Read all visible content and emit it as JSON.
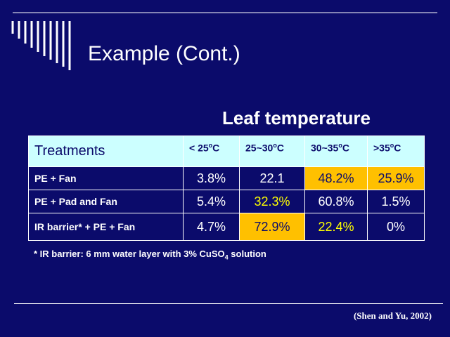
{
  "title": "Example (Cont.)",
  "subtitle": "Leaf temperature",
  "table": {
    "header": [
      "Treatments",
      {
        "text": "< 25",
        "sup": "o",
        "unit": "C"
      },
      {
        "text": "25~30",
        "sup": "o",
        "unit": "C"
      },
      {
        "text": "30~35",
        "sup": "o",
        "unit": "C"
      },
      {
        "text": ">35",
        "sup": "o",
        "unit": "C"
      }
    ],
    "rows": [
      [
        "PE + Fan",
        "3.8%",
        "22.1",
        "48.2%",
        "25.9%"
      ],
      [
        "PE + Pad and Fan",
        "5.4%",
        "32.3%",
        "60.8%",
        "1.5%"
      ],
      [
        "IR barrier* + PE + Fan",
        "4.7%",
        "72.9%",
        "22.4%",
        "0%"
      ]
    ]
  },
  "footnote": {
    "text": "* IR barrier: 6 mm water layer with 3% CuSO",
    "sub": "4",
    "rest": " solution"
  },
  "citation": "(Shen and Yu, 2002)"
}
